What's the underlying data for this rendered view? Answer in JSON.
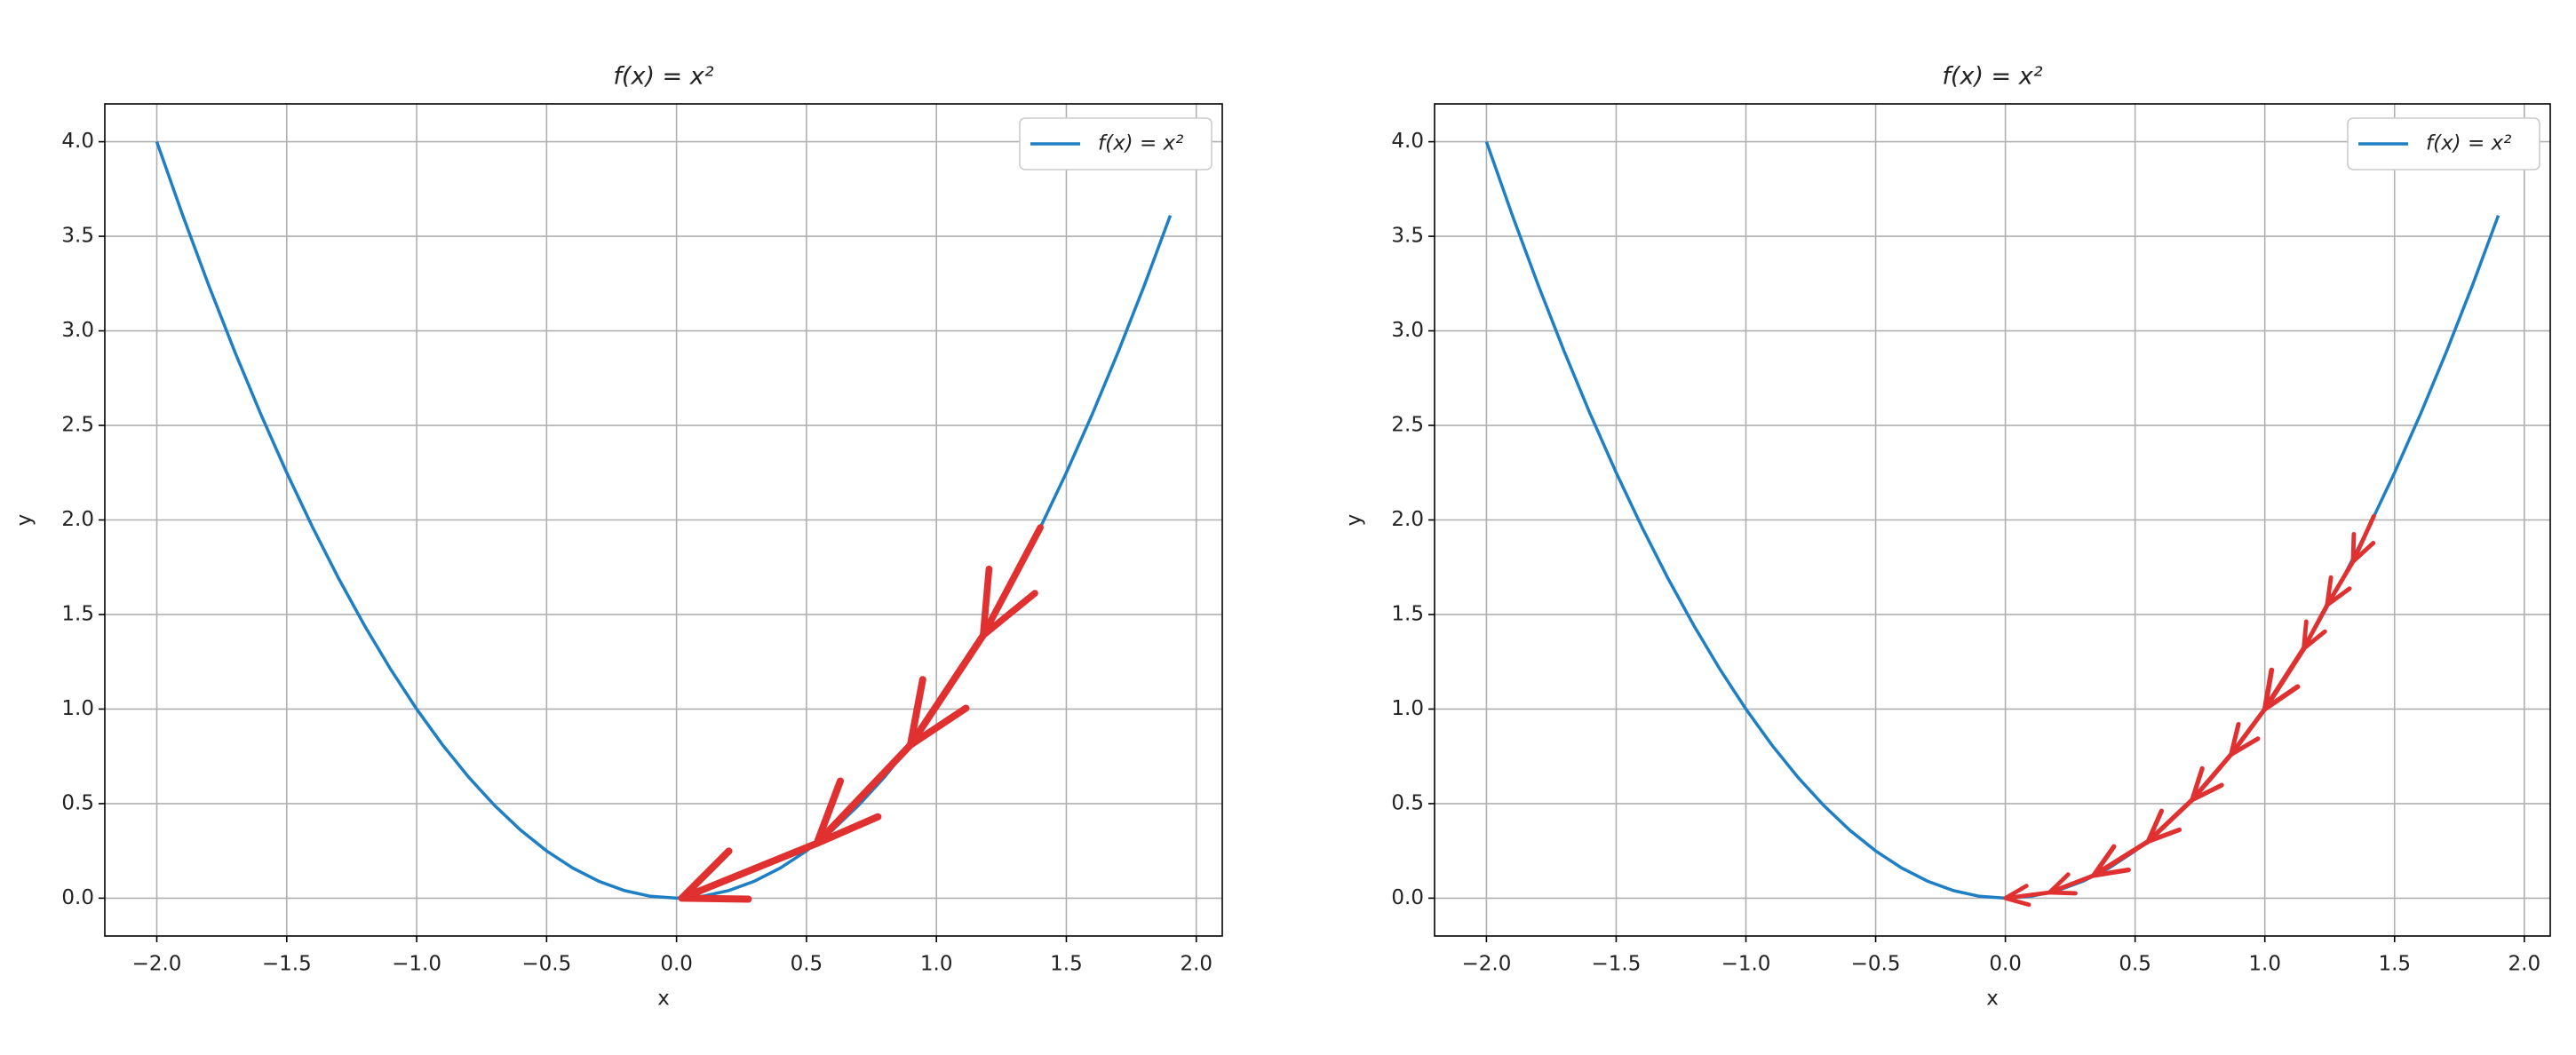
{
  "chart_data": [
    {
      "type": "line",
      "title": "f(x) = x²",
      "x_label": "x",
      "y_label": "y",
      "xlim": [
        -2.2,
        2.1
      ],
      "ylim": [
        -0.2,
        4.2
      ],
      "xticks": [
        {
          "value": -2,
          "label": "−2.0"
        },
        {
          "value": -1.5,
          "label": "−1.5"
        },
        {
          "value": -1,
          "label": "−1.0"
        },
        {
          "value": -0.5,
          "label": "−0.5"
        },
        {
          "value": 0,
          "label": "0.0"
        },
        0.5,
        {
          "value": 1,
          "label": "1.0"
        },
        1.5,
        {
          "value": 2,
          "label": "2.0"
        }
      ],
      "yticks": [
        {
          "value": 0,
          "label": "0.0"
        },
        0.5,
        {
          "value": 1,
          "label": "1.0"
        },
        1.5,
        {
          "value": 2,
          "label": "2.0"
        },
        2.5,
        {
          "value": 3,
          "label": "3.0"
        },
        3.5,
        {
          "value": 4,
          "label": "4.0"
        }
      ],
      "grid": true,
      "legend": "upper right",
      "x": [
        -2,
        -1.9,
        -1.8,
        -1.7,
        -1.6,
        -1.5,
        -1.4,
        -1.3,
        -1.2,
        -1.1,
        -1,
        -0.9,
        -0.8,
        -0.7,
        -0.6,
        -0.5,
        -0.4,
        -0.3,
        -0.2,
        -0.1,
        0,
        0.1,
        0.2,
        0.3,
        0.4,
        0.5,
        0.6,
        0.7,
        0.8,
        0.9,
        1,
        1.1,
        1.2,
        1.3,
        1.4,
        1.5,
        1.6,
        1.7,
        1.8,
        1.9
      ],
      "series": [
        {
          "name": "f(x) = x²",
          "color": "#1f7fc4",
          "values": [
            4,
            3.61,
            3.24,
            2.89,
            2.56,
            2.25,
            1.96,
            1.69,
            1.44,
            1.21,
            1,
            0.81,
            0.64,
            0.49,
            0.36,
            0.25,
            0.16,
            0.09,
            0.04,
            0.01,
            0,
            0.01,
            0.04,
            0.09,
            0.16,
            0.25,
            0.36,
            0.49,
            0.64,
            0.81,
            1,
            1.21,
            1.44,
            1.69,
            1.96,
            2.25,
            2.56,
            2.89,
            3.24,
            3.61
          ]
        }
      ],
      "arrows": {
        "color": "#e03030",
        "x": [
          1.4,
          1.18,
          0.9,
          0.54,
          0.02
        ],
        "y": [
          1.96,
          1.39,
          0.81,
          0.29,
          0
        ]
      }
    },
    {
      "type": "line",
      "title": "f(x) = x²",
      "x_label": "x",
      "y_label": "y",
      "xlim": [
        -2.2,
        2.1
      ],
      "ylim": [
        -0.2,
        4.2
      ],
      "xticks": [
        {
          "value": -2,
          "label": "−2.0"
        },
        {
          "value": -1.5,
          "label": "−1.5"
        },
        {
          "value": -1,
          "label": "−1.0"
        },
        {
          "value": -0.5,
          "label": "−0.5"
        },
        {
          "value": 0,
          "label": "0.0"
        },
        0.5,
        {
          "value": 1,
          "label": "1.0"
        },
        1.5,
        {
          "value": 2,
          "label": "2.0"
        }
      ],
      "yticks": [
        {
          "value": 0,
          "label": "0.0"
        },
        0.5,
        {
          "value": 1,
          "label": "1.0"
        },
        1.5,
        {
          "value": 2,
          "label": "2.0"
        },
        2.5,
        {
          "value": 3,
          "label": "3.0"
        },
        3.5,
        {
          "value": 4,
          "label": "4.0"
        }
      ],
      "grid": true,
      "legend": "upper right",
      "x": [
        -2,
        -1.9,
        -1.8,
        -1.7,
        -1.6,
        -1.5,
        -1.4,
        -1.3,
        -1.2,
        -1.1,
        -1,
        -0.9,
        -0.8,
        -0.7,
        -0.6,
        -0.5,
        -0.4,
        -0.3,
        -0.2,
        -0.1,
        0,
        0.1,
        0.2,
        0.3,
        0.4,
        0.5,
        0.6,
        0.7,
        0.8,
        0.9,
        1,
        1.1,
        1.2,
        1.3,
        1.4,
        1.5,
        1.6,
        1.7,
        1.8,
        1.9
      ],
      "series": [
        {
          "name": "f(x) = x²",
          "color": "#1f7fc4",
          "values": [
            4,
            3.61,
            3.24,
            2.89,
            2.56,
            2.25,
            1.96,
            1.69,
            1.44,
            1.21,
            1,
            0.81,
            0.64,
            0.49,
            0.36,
            0.25,
            0.16,
            0.09,
            0.04,
            0.01,
            0,
            0.01,
            0.04,
            0.09,
            0.16,
            0.25,
            0.36,
            0.49,
            0.64,
            0.81,
            1,
            1.21,
            1.44,
            1.69,
            1.96,
            2.25,
            2.56,
            2.89,
            3.24,
            3.61
          ]
        }
      ],
      "arrows": {
        "color": "#e03030",
        "x": [
          1.42,
          1.34,
          1.24,
          1.15,
          1.0,
          0.87,
          0.72,
          0.55,
          0.34,
          0.17,
          0
        ],
        "y": [
          2.02,
          1.78,
          1.55,
          1.32,
          1.0,
          0.76,
          0.52,
          0.3,
          0.12,
          0.03,
          0
        ]
      }
    }
  ]
}
